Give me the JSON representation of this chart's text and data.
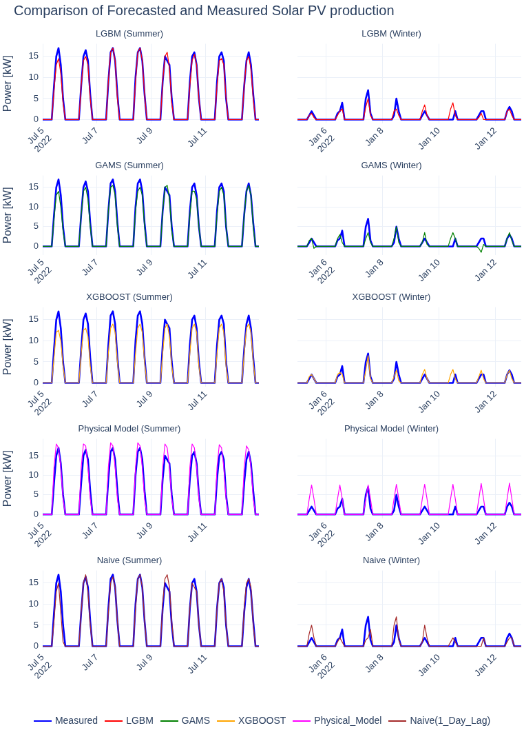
{
  "chart_data": [
    {
      "type": "line",
      "title": "LGBM (Summer)",
      "annotations": [
        "Comparison of Forecasted and Measured Solar PV production"
      ],
      "ylabel": "Power [kW]",
      "grid": true,
      "legend": "bottom",
      "xlim": [
        "2022-07-05T00:00",
        "2022-07-12T23:00"
      ],
      "ylim": [
        -0.9,
        18
      ],
      "yticks": [
        0,
        5,
        10,
        15
      ],
      "xticks": [
        {
          "value": "2022-07-05",
          "label": "Jul 5\n2022"
        },
        {
          "value": "2022-07-07",
          "label": "Jul 7"
        },
        {
          "value": "2022-07-09",
          "label": "Jul 9"
        },
        {
          "value": "2022-07-11",
          "label": "Jul 11"
        }
      ],
      "x": [
        "2022-07-05T00:00",
        "2022-07-05T08:00",
        "2022-07-05T10:00",
        "2022-07-05T12:00",
        "2022-07-05T14:00",
        "2022-07-05T16:00",
        "2022-07-05T18:00",
        "2022-07-05T20:00",
        "2022-07-06T08:00",
        "2022-07-06T10:00",
        "2022-07-06T12:00",
        "2022-07-06T14:00",
        "2022-07-06T16:00",
        "2022-07-06T18:00",
        "2022-07-06T20:00",
        "2022-07-07T08:00",
        "2022-07-07T10:00",
        "2022-07-07T12:00",
        "2022-07-07T14:00",
        "2022-07-07T16:00",
        "2022-07-07T18:00",
        "2022-07-07T20:00",
        "2022-07-08T08:00",
        "2022-07-08T10:00",
        "2022-07-08T12:00",
        "2022-07-08T14:00",
        "2022-07-08T16:00",
        "2022-07-08T18:00",
        "2022-07-08T20:00",
        "2022-07-09T08:00",
        "2022-07-09T10:00",
        "2022-07-09T12:00",
        "2022-07-09T14:00",
        "2022-07-09T16:00",
        "2022-07-09T18:00",
        "2022-07-09T20:00",
        "2022-07-10T08:00",
        "2022-07-10T10:00",
        "2022-07-10T12:00",
        "2022-07-10T14:00",
        "2022-07-10T16:00",
        "2022-07-10T18:00",
        "2022-07-10T20:00",
        "2022-07-11T08:00",
        "2022-07-11T10:00",
        "2022-07-11T12:00",
        "2022-07-11T14:00",
        "2022-07-11T16:00",
        "2022-07-11T18:00",
        "2022-07-11T20:00",
        "2022-07-12T08:00",
        "2022-07-12T10:00",
        "2022-07-12T12:00",
        "2022-07-12T14:00",
        "2022-07-12T16:00",
        "2022-07-12T18:00",
        "2022-07-12T20:00",
        "2022-07-12T23:00"
      ],
      "series": [
        {
          "name": "Measured",
          "color": "#0000ff",
          "values": [
            0,
            0,
            8,
            15,
            17,
            13,
            5,
            0,
            0,
            8,
            15,
            16.5,
            14,
            6,
            0,
            0,
            9,
            16,
            17,
            14,
            6,
            0,
            0,
            10,
            16,
            17,
            14,
            6,
            0,
            0,
            9,
            15,
            14,
            13,
            5,
            0,
            0,
            9,
            15,
            16,
            13,
            5,
            0,
            0,
            9,
            15,
            16,
            14,
            5,
            0,
            0,
            8,
            14,
            16,
            13,
            6,
            0,
            0
          ]
        },
        {
          "name": "LGBM",
          "color": "#ff0000",
          "values": [
            0,
            0,
            7,
            13,
            14.5,
            11,
            4,
            0,
            0,
            8,
            14,
            15,
            13,
            5,
            0,
            0,
            9,
            16,
            17,
            14,
            5,
            0,
            0,
            9,
            16,
            17,
            14,
            6,
            0,
            0,
            9,
            15,
            16,
            12,
            4,
            0,
            0,
            8,
            14,
            15.5,
            13,
            5,
            0,
            0,
            8,
            14,
            14.5,
            13,
            5,
            0,
            0,
            8,
            14,
            15,
            12,
            5,
            0,
            0
          ]
        }
      ]
    },
    {
      "type": "line",
      "title": "LGBM (Winter)",
      "grid": true,
      "legend": "bottom",
      "tick_labels": "x",
      "xlim": [
        "2022-01-05T00:00",
        "2022-01-12T22:00"
      ],
      "ylim": [
        -0.9,
        18
      ],
      "yticks": [
        0,
        5,
        10,
        15
      ],
      "xticks": [
        {
          "value": "2022-01-06",
          "label": "Jan 6\n2022"
        },
        {
          "value": "2022-01-08",
          "label": "Jan 8"
        },
        {
          "value": "2022-01-10",
          "label": "Jan 10"
        },
        {
          "value": "2022-01-12",
          "label": "Jan 12"
        }
      ],
      "x": [
        "2022-01-05T00:00",
        "2022-01-05T08:00",
        "2022-01-05T10:00",
        "2022-01-05T12:00",
        "2022-01-05T14:00",
        "2022-01-05T16:00",
        "2022-01-06T08:00",
        "2022-01-06T10:00",
        "2022-01-06T12:00",
        "2022-01-06T14:00",
        "2022-01-06T16:00",
        "2022-01-07T08:00",
        "2022-01-07T10:00",
        "2022-01-07T12:00",
        "2022-01-07T14:00",
        "2022-01-07T16:00",
        "2022-01-08T08:00",
        "2022-01-08T10:00",
        "2022-01-08T12:00",
        "2022-01-08T14:00",
        "2022-01-08T16:00",
        "2022-01-09T08:00",
        "2022-01-09T10:00",
        "2022-01-09T12:00",
        "2022-01-09T14:00",
        "2022-01-09T16:00",
        "2022-01-10T08:00",
        "2022-01-10T10:00",
        "2022-01-10T12:00",
        "2022-01-10T14:00",
        "2022-01-10T16:00",
        "2022-01-11T08:00",
        "2022-01-11T10:00",
        "2022-01-11T12:00",
        "2022-01-11T14:00",
        "2022-01-11T16:00",
        "2022-01-12T08:00",
        "2022-01-12T10:00",
        "2022-01-12T12:00",
        "2022-01-12T14:00",
        "2022-01-12T16:00",
        "2022-01-12T22:00"
      ],
      "series": [
        {
          "name": "Measured",
          "color": "#0000ff",
          "values": [
            0,
            0,
            1,
            2,
            1,
            0,
            0,
            1.5,
            2,
            4,
            0,
            0,
            5,
            7,
            1.5,
            0,
            0,
            1,
            5,
            2,
            0,
            0,
            1,
            2,
            1,
            0,
            0,
            0,
            0,
            2,
            0,
            0,
            1,
            2,
            2,
            0,
            0,
            2,
            3,
            2,
            0,
            0
          ]
        },
        {
          "name": "LGBM",
          "color": "#ff0000",
          "values": [
            0,
            0,
            1,
            1.5,
            0.5,
            0,
            0,
            1,
            2,
            2.5,
            0,
            0,
            3,
            5,
            1,
            0,
            0,
            2,
            2.5,
            1,
            0,
            0,
            2,
            3.5,
            1,
            0,
            0,
            2.5,
            4,
            1,
            0,
            0,
            0.5,
            1.5,
            0,
            0,
            0,
            2,
            2.5,
            1,
            0,
            0
          ]
        }
      ]
    },
    {
      "type": "line",
      "title": "GAMS (Summer)",
      "ylabel": "Power [kW]",
      "grid": true,
      "legend": "bottom",
      "xlim": [
        "2022-07-05T00:00",
        "2022-07-12T23:00"
      ],
      "ylim": [
        -2.2,
        18
      ],
      "yticks": [
        0,
        5,
        10,
        15
      ],
      "xticks": [
        {
          "value": "2022-07-05",
          "label": "Jul 5\n2022"
        },
        {
          "value": "2022-07-07",
          "label": "Jul 7"
        },
        {
          "value": "2022-07-09",
          "label": "Jul 9"
        },
        {
          "value": "2022-07-11",
          "label": "Jul 11"
        }
      ],
      "x": [
        "2022-07-05T00:00",
        "2022-07-05T08:00",
        "2022-07-05T10:00",
        "2022-07-05T12:00",
        "2022-07-05T14:00",
        "2022-07-05T16:00",
        "2022-07-05T18:00",
        "2022-07-05T20:00",
        "2022-07-06T08:00",
        "2022-07-06T10:00",
        "2022-07-06T12:00",
        "2022-07-06T14:00",
        "2022-07-06T16:00",
        "2022-07-06T18:00",
        "2022-07-06T20:00",
        "2022-07-07T08:00",
        "2022-07-07T10:00",
        "2022-07-07T12:00",
        "2022-07-07T14:00",
        "2022-07-07T16:00",
        "2022-07-07T18:00",
        "2022-07-07T20:00",
        "2022-07-08T08:00",
        "2022-07-08T10:00",
        "2022-07-08T12:00",
        "2022-07-08T14:00",
        "2022-07-08T16:00",
        "2022-07-08T18:00",
        "2022-07-08T20:00",
        "2022-07-09T08:00",
        "2022-07-09T10:00",
        "2022-07-09T12:00",
        "2022-07-09T14:00",
        "2022-07-09T16:00",
        "2022-07-09T18:00",
        "2022-07-09T20:00",
        "2022-07-10T08:00",
        "2022-07-10T10:00",
        "2022-07-10T12:00",
        "2022-07-10T14:00",
        "2022-07-10T16:00",
        "2022-07-10T18:00",
        "2022-07-10T20:00",
        "2022-07-11T08:00",
        "2022-07-11T10:00",
        "2022-07-11T12:00",
        "2022-07-11T14:00",
        "2022-07-11T16:00",
        "2022-07-11T18:00",
        "2022-07-11T20:00",
        "2022-07-12T08:00",
        "2022-07-12T10:00",
        "2022-07-12T12:00",
        "2022-07-12T14:00",
        "2022-07-12T16:00",
        "2022-07-12T18:00",
        "2022-07-12T20:00",
        "2022-07-12T23:00"
      ],
      "series": [
        {
          "name": "Measured",
          "color": "#0000ff",
          "values": [
            0,
            0,
            8,
            15,
            17,
            13,
            5,
            0,
            0,
            8,
            15,
            16.5,
            14,
            6,
            0,
            0,
            9,
            16,
            17,
            14,
            6,
            0,
            0,
            10,
            16,
            17,
            14,
            6,
            0,
            0,
            9,
            15,
            14,
            13,
            5,
            0,
            0,
            9,
            15,
            16,
            13,
            5,
            0,
            0,
            9,
            15,
            16,
            14,
            5,
            0,
            0,
            8,
            14,
            16,
            13,
            6,
            0,
            0
          ]
        },
        {
          "name": "GAMS",
          "color": "#008000",
          "values": [
            0,
            0,
            7,
            13,
            14,
            10,
            4,
            0,
            0,
            8,
            14,
            15,
            12,
            5,
            0,
            0,
            9,
            15,
            15.5,
            13,
            5,
            0,
            0,
            9,
            14,
            15,
            13,
            5,
            0,
            0,
            9,
            15,
            15.5,
            12,
            4,
            0,
            0,
            8,
            14,
            14,
            12,
            5,
            0,
            0,
            8,
            14,
            15,
            13,
            5,
            0,
            0,
            8,
            14,
            15.5,
            13,
            5,
            0,
            0
          ]
        }
      ]
    },
    {
      "type": "line",
      "title": "GAMS (Winter)",
      "grid": true,
      "legend": "bottom",
      "tick_labels": "x",
      "xlim": [
        "2022-01-05T00:00",
        "2022-01-12T22:00"
      ],
      "ylim": [
        -2.2,
        18
      ],
      "yticks": [
        0,
        5,
        10,
        15
      ],
      "xticks": [
        {
          "value": "2022-01-06",
          "label": "Jan 6\n2022"
        },
        {
          "value": "2022-01-08",
          "label": "Jan 8"
        },
        {
          "value": "2022-01-10",
          "label": "Jan 10"
        },
        {
          "value": "2022-01-12",
          "label": "Jan 12"
        }
      ],
      "x": [
        "2022-01-05T00:00",
        "2022-01-05T08:00",
        "2022-01-05T10:00",
        "2022-01-05T12:00",
        "2022-01-05T14:00",
        "2022-01-05T16:00",
        "2022-01-06T08:00",
        "2022-01-06T10:00",
        "2022-01-06T12:00",
        "2022-01-06T14:00",
        "2022-01-06T16:00",
        "2022-01-07T08:00",
        "2022-01-07T10:00",
        "2022-01-07T12:00",
        "2022-01-07T14:00",
        "2022-01-07T16:00",
        "2022-01-08T08:00",
        "2022-01-08T10:00",
        "2022-01-08T12:00",
        "2022-01-08T14:00",
        "2022-01-08T16:00",
        "2022-01-09T08:00",
        "2022-01-09T10:00",
        "2022-01-09T12:00",
        "2022-01-09T14:00",
        "2022-01-09T16:00",
        "2022-01-10T08:00",
        "2022-01-10T10:00",
        "2022-01-10T12:00",
        "2022-01-10T14:00",
        "2022-01-10T16:00",
        "2022-01-11T08:00",
        "2022-01-11T10:00",
        "2022-01-11T12:00",
        "2022-01-11T14:00",
        "2022-01-11T16:00",
        "2022-01-12T08:00",
        "2022-01-12T10:00",
        "2022-01-12T12:00",
        "2022-01-12T14:00",
        "2022-01-12T16:00",
        "2022-01-12T22:00"
      ],
      "series": [
        {
          "name": "Measured",
          "color": "#0000ff",
          "values": [
            0,
            0,
            1,
            2,
            1,
            0,
            0,
            1.5,
            2,
            4,
            0,
            0,
            5,
            7,
            1.5,
            0,
            0,
            1,
            5,
            2,
            0,
            0,
            1,
            2,
            1,
            0,
            0,
            0,
            0,
            2,
            0,
            0,
            1,
            2,
            2,
            0,
            0,
            2,
            3,
            2,
            0,
            0
          ]
        },
        {
          "name": "GAMS",
          "color": "#008000",
          "values": [
            0,
            0,
            1.5,
            2,
            -0.5,
            0,
            0,
            2,
            3,
            1,
            0,
            0,
            2,
            3.5,
            1,
            0,
            0,
            2,
            5,
            1,
            0,
            0,
            1,
            3.5,
            0.5,
            0,
            0,
            2,
            3.5,
            2,
            0,
            0,
            -0.5,
            -1.5,
            0.5,
            0,
            0,
            2,
            3.5,
            1.5,
            0,
            0
          ]
        }
      ]
    },
    {
      "type": "line",
      "title": "XGBOOST (Summer)",
      "ylabel": "Power [kW]",
      "grid": true,
      "legend": "bottom",
      "xlim": [
        "2022-07-05T00:00",
        "2022-07-12T23:00"
      ],
      "ylim": [
        -0.9,
        18
      ],
      "yticks": [
        0,
        5,
        10,
        15
      ],
      "xticks": [
        {
          "value": "2022-07-05",
          "label": "Jul 5\n2022"
        },
        {
          "value": "2022-07-07",
          "label": "Jul 7"
        },
        {
          "value": "2022-07-09",
          "label": "Jul 9"
        },
        {
          "value": "2022-07-11",
          "label": "Jul 11"
        }
      ],
      "x": [
        "2022-07-05T00:00",
        "2022-07-05T08:00",
        "2022-07-05T10:00",
        "2022-07-05T12:00",
        "2022-07-05T14:00",
        "2022-07-05T16:00",
        "2022-07-05T18:00",
        "2022-07-05T20:00",
        "2022-07-06T08:00",
        "2022-07-06T10:00",
        "2022-07-06T12:00",
        "2022-07-06T14:00",
        "2022-07-06T16:00",
        "2022-07-06T18:00",
        "2022-07-06T20:00",
        "2022-07-07T08:00",
        "2022-07-07T10:00",
        "2022-07-07T12:00",
        "2022-07-07T14:00",
        "2022-07-07T16:00",
        "2022-07-07T18:00",
        "2022-07-07T20:00",
        "2022-07-08T08:00",
        "2022-07-08T10:00",
        "2022-07-08T12:00",
        "2022-07-08T14:00",
        "2022-07-08T16:00",
        "2022-07-08T18:00",
        "2022-07-08T20:00",
        "2022-07-09T08:00",
        "2022-07-09T10:00",
        "2022-07-09T12:00",
        "2022-07-09T14:00",
        "2022-07-09T16:00",
        "2022-07-09T18:00",
        "2022-07-09T20:00",
        "2022-07-10T08:00",
        "2022-07-10T10:00",
        "2022-07-10T12:00",
        "2022-07-10T14:00",
        "2022-07-10T16:00",
        "2022-07-10T18:00",
        "2022-07-10T20:00",
        "2022-07-11T08:00",
        "2022-07-11T10:00",
        "2022-07-11T12:00",
        "2022-07-11T14:00",
        "2022-07-11T16:00",
        "2022-07-11T18:00",
        "2022-07-11T20:00",
        "2022-07-12T08:00",
        "2022-07-12T10:00",
        "2022-07-12T12:00",
        "2022-07-12T14:00",
        "2022-07-12T16:00",
        "2022-07-12T18:00",
        "2022-07-12T20:00",
        "2022-07-12T23:00"
      ],
      "series": [
        {
          "name": "Measured",
          "color": "#0000ff",
          "values": [
            0,
            0,
            8,
            15,
            17,
            13,
            5,
            0,
            0,
            8,
            15,
            16.5,
            14,
            6,
            0,
            0,
            9,
            16,
            17,
            14,
            6,
            0,
            0,
            10,
            16,
            17,
            14,
            6,
            0,
            0,
            9,
            15,
            14,
            13,
            5,
            0,
            0,
            9,
            15,
            16,
            13,
            5,
            0,
            0,
            9,
            15,
            16,
            14,
            5,
            0,
            0,
            8,
            14,
            16,
            13,
            6,
            0,
            0
          ]
        },
        {
          "name": "XGBOOST",
          "color": "#ffa500",
          "values": [
            0,
            0,
            6,
            12,
            12.5,
            10,
            4,
            0,
            0,
            7,
            12.5,
            13,
            11,
            4,
            0,
            0,
            7,
            13,
            14,
            12,
            5,
            0,
            0,
            7,
            13,
            14,
            12,
            5,
            0,
            0,
            7,
            13,
            14,
            11,
            4,
            0,
            0,
            7,
            13,
            14,
            12,
            4,
            0,
            0,
            7,
            13,
            14,
            12,
            4,
            0,
            0,
            7,
            13,
            14,
            12,
            5,
            0,
            0
          ]
        }
      ]
    },
    {
      "type": "line",
      "title": "XGBOOST (Winter)",
      "grid": true,
      "legend": "bottom",
      "tick_labels": "x",
      "xlim": [
        "2022-01-05T00:00",
        "2022-01-12T22:00"
      ],
      "ylim": [
        -0.9,
        18
      ],
      "yticks": [
        0,
        5,
        10,
        15
      ],
      "xticks": [
        {
          "value": "2022-01-06",
          "label": "Jan 6\n2022"
        },
        {
          "value": "2022-01-08",
          "label": "Jan 8"
        },
        {
          "value": "2022-01-10",
          "label": "Jan 10"
        },
        {
          "value": "2022-01-12",
          "label": "Jan 12"
        }
      ],
      "x": [
        "2022-01-05T00:00",
        "2022-01-05T08:00",
        "2022-01-05T10:00",
        "2022-01-05T12:00",
        "2022-01-05T14:00",
        "2022-01-05T16:00",
        "2022-01-06T08:00",
        "2022-01-06T10:00",
        "2022-01-06T12:00",
        "2022-01-06T14:00",
        "2022-01-06T16:00",
        "2022-01-07T08:00",
        "2022-01-07T10:00",
        "2022-01-07T12:00",
        "2022-01-07T14:00",
        "2022-01-07T16:00",
        "2022-01-08T08:00",
        "2022-01-08T10:00",
        "2022-01-08T12:00",
        "2022-01-08T14:00",
        "2022-01-08T16:00",
        "2022-01-09T08:00",
        "2022-01-09T10:00",
        "2022-01-09T12:00",
        "2022-01-09T14:00",
        "2022-01-09T16:00",
        "2022-01-10T08:00",
        "2022-01-10T10:00",
        "2022-01-10T12:00",
        "2022-01-10T14:00",
        "2022-01-10T16:00",
        "2022-01-11T08:00",
        "2022-01-11T10:00",
        "2022-01-11T12:00",
        "2022-01-11T14:00",
        "2022-01-11T16:00",
        "2022-01-12T08:00",
        "2022-01-12T10:00",
        "2022-01-12T12:00",
        "2022-01-12T14:00",
        "2022-01-12T16:00",
        "2022-01-12T22:00"
      ],
      "series": [
        {
          "name": "Measured",
          "color": "#0000ff",
          "values": [
            0,
            0,
            1,
            2,
            1,
            0,
            0,
            1.5,
            2,
            4,
            0,
            0,
            5,
            7,
            1.5,
            0,
            0,
            1,
            5,
            2,
            0,
            0,
            1,
            2,
            1,
            0,
            0,
            0,
            0,
            2,
            0,
            0,
            1,
            2,
            2,
            0,
            0,
            2,
            3,
            2,
            0,
            0
          ]
        },
        {
          "name": "XGBOOST",
          "color": "#ffa500",
          "values": [
            0,
            0,
            1.5,
            2,
            1,
            0,
            0,
            2,
            2.5,
            2,
            0,
            0,
            3,
            6.5,
            1,
            0,
            0,
            1.5,
            3,
            0.5,
            0,
            0,
            2,
            3.2,
            1,
            0,
            0,
            2,
            3.2,
            1,
            0,
            0,
            1.5,
            3,
            1,
            0,
            0,
            2,
            3,
            1,
            0,
            0
          ]
        }
      ]
    },
    {
      "type": "line",
      "title": "Physical Model (Summer)",
      "ylabel": "Power [kW]",
      "grid": true,
      "legend": "bottom",
      "xlim": [
        "2022-07-05T00:00",
        "2022-07-12T23:00"
      ],
      "ylim": [
        -1,
        19.3
      ],
      "yticks": [
        0,
        5,
        10,
        15
      ],
      "xticks": [
        {
          "value": "2022-07-05",
          "label": "Jul 5\n2022"
        },
        {
          "value": "2022-07-07",
          "label": "Jul 7"
        },
        {
          "value": "2022-07-09",
          "label": "Jul 9"
        },
        {
          "value": "2022-07-11",
          "label": "Jul 11"
        }
      ],
      "x": [
        "2022-07-05T00:00",
        "2022-07-05T08:00",
        "2022-07-05T10:00",
        "2022-07-05T12:00",
        "2022-07-05T14:00",
        "2022-07-05T16:00",
        "2022-07-05T18:00",
        "2022-07-05T20:00",
        "2022-07-06T08:00",
        "2022-07-06T10:00",
        "2022-07-06T12:00",
        "2022-07-06T14:00",
        "2022-07-06T16:00",
        "2022-07-06T18:00",
        "2022-07-06T20:00",
        "2022-07-07T08:00",
        "2022-07-07T10:00",
        "2022-07-07T12:00",
        "2022-07-07T14:00",
        "2022-07-07T16:00",
        "2022-07-07T18:00",
        "2022-07-07T20:00",
        "2022-07-08T08:00",
        "2022-07-08T10:00",
        "2022-07-08T12:00",
        "2022-07-08T14:00",
        "2022-07-08T16:00",
        "2022-07-08T18:00",
        "2022-07-08T20:00",
        "2022-07-09T08:00",
        "2022-07-09T10:00",
        "2022-07-09T12:00",
        "2022-07-09T14:00",
        "2022-07-09T16:00",
        "2022-07-09T18:00",
        "2022-07-09T20:00",
        "2022-07-10T08:00",
        "2022-07-10T10:00",
        "2022-07-10T12:00",
        "2022-07-10T14:00",
        "2022-07-10T16:00",
        "2022-07-10T18:00",
        "2022-07-10T20:00",
        "2022-07-11T08:00",
        "2022-07-11T10:00",
        "2022-07-11T12:00",
        "2022-07-11T14:00",
        "2022-07-11T16:00",
        "2022-07-11T18:00",
        "2022-07-11T20:00",
        "2022-07-12T08:00",
        "2022-07-12T10:00",
        "2022-07-12T12:00",
        "2022-07-12T14:00",
        "2022-07-12T16:00",
        "2022-07-12T18:00",
        "2022-07-12T20:00",
        "2022-07-12T23:00"
      ],
      "series": [
        {
          "name": "Measured",
          "color": "#0000ff",
          "values": [
            0,
            0,
            8,
            15,
            17,
            13,
            5,
            0,
            0,
            8,
            15,
            16.5,
            14,
            6,
            0,
            0,
            9,
            16,
            17,
            14,
            6,
            0,
            0,
            10,
            16,
            17,
            14,
            6,
            0,
            0,
            9,
            15,
            14,
            13,
            5,
            0,
            0,
            9,
            15,
            16,
            13,
            5,
            0,
            0,
            9,
            15,
            16,
            14,
            5,
            0,
            0,
            8,
            14,
            16,
            13,
            6,
            0,
            0
          ]
        },
        {
          "name": "Physical_Model",
          "color": "#ff00ff",
          "values": [
            0,
            0,
            12,
            18,
            17,
            12,
            4,
            0,
            0,
            12,
            18,
            17.5,
            12,
            4,
            0,
            0,
            12,
            18.3,
            17.5,
            12,
            4,
            0,
            0,
            12,
            18.3,
            17.5,
            12,
            4,
            0,
            0,
            12,
            18,
            17,
            12,
            4,
            0,
            0,
            12,
            18,
            17,
            12,
            4,
            0,
            0,
            12,
            17.8,
            17,
            12,
            4,
            0,
            0,
            12,
            17.5,
            16.5,
            12,
            4,
            0,
            0
          ]
        }
      ]
    },
    {
      "type": "line",
      "title": "Physical Model (Winter)",
      "grid": true,
      "legend": "bottom",
      "tick_labels": "x",
      "xlim": [
        "2022-01-05T00:00",
        "2022-01-12T22:00"
      ],
      "ylim": [
        -1,
        19.3
      ],
      "yticks": [
        0,
        5,
        10,
        15
      ],
      "xticks": [
        {
          "value": "2022-01-06",
          "label": "Jan 6\n2022"
        },
        {
          "value": "2022-01-08",
          "label": "Jan 8"
        },
        {
          "value": "2022-01-10",
          "label": "Jan 10"
        },
        {
          "value": "2022-01-12",
          "label": "Jan 12"
        }
      ],
      "x": [
        "2022-01-05T00:00",
        "2022-01-05T08:00",
        "2022-01-05T10:00",
        "2022-01-05T12:00",
        "2022-01-05T14:00",
        "2022-01-05T16:00",
        "2022-01-06T08:00",
        "2022-01-06T10:00",
        "2022-01-06T12:00",
        "2022-01-06T14:00",
        "2022-01-06T16:00",
        "2022-01-07T08:00",
        "2022-01-07T10:00",
        "2022-01-07T12:00",
        "2022-01-07T14:00",
        "2022-01-07T16:00",
        "2022-01-08T08:00",
        "2022-01-08T10:00",
        "2022-01-08T12:00",
        "2022-01-08T14:00",
        "2022-01-08T16:00",
        "2022-01-09T08:00",
        "2022-01-09T10:00",
        "2022-01-09T12:00",
        "2022-01-09T14:00",
        "2022-01-09T16:00",
        "2022-01-10T08:00",
        "2022-01-10T10:00",
        "2022-01-10T12:00",
        "2022-01-10T14:00",
        "2022-01-10T16:00",
        "2022-01-11T08:00",
        "2022-01-11T10:00",
        "2022-01-11T12:00",
        "2022-01-11T14:00",
        "2022-01-11T16:00",
        "2022-01-12T08:00",
        "2022-01-12T10:00",
        "2022-01-12T12:00",
        "2022-01-12T14:00",
        "2022-01-12T16:00",
        "2022-01-12T22:00"
      ],
      "series": [
        {
          "name": "Measured",
          "color": "#0000ff",
          "values": [
            0,
            0,
            1,
            2,
            1,
            0,
            0,
            1.5,
            2,
            4,
            0,
            0,
            5,
            7,
            1.5,
            0,
            0,
            1,
            5,
            2,
            0,
            0,
            1,
            2,
            1,
            0,
            0,
            0,
            0,
            2,
            0,
            0,
            1,
            2,
            2,
            0,
            0,
            2,
            3,
            2,
            0,
            0
          ]
        },
        {
          "name": "Physical_Model",
          "color": "#ff00ff",
          "values": [
            0,
            0,
            4,
            7.5,
            4,
            0,
            0,
            4,
            7.5,
            4,
            0,
            0,
            4,
            7.5,
            4,
            0,
            0,
            4,
            7.7,
            4,
            0,
            0,
            4,
            7.7,
            4,
            0,
            0,
            4,
            7.7,
            4,
            0,
            0,
            4,
            7.9,
            4,
            0,
            0,
            4,
            8,
            4,
            0,
            0
          ]
        }
      ]
    },
    {
      "type": "line",
      "title": "Naive (Summer)",
      "grid": true,
      "legend": "bottom",
      "xlim": [
        "2022-07-05T00:00",
        "2022-07-12T23:00"
      ],
      "ylim": [
        -0.9,
        18
      ],
      "yticks": [
        0,
        5,
        10,
        15
      ],
      "xticks": [
        {
          "value": "2022-07-05",
          "label": "Jul 5\n2022"
        },
        {
          "value": "2022-07-07",
          "label": "Jul 7"
        },
        {
          "value": "2022-07-09",
          "label": "Jul 9"
        },
        {
          "value": "2022-07-11",
          "label": "Jul 11"
        }
      ],
      "x": [
        "2022-07-05T00:00",
        "2022-07-05T08:00",
        "2022-07-05T10:00",
        "2022-07-05T12:00",
        "2022-07-05T14:00",
        "2022-07-05T16:00",
        "2022-07-05T18:00",
        "2022-07-05T20:00",
        "2022-07-06T08:00",
        "2022-07-06T10:00",
        "2022-07-06T12:00",
        "2022-07-06T14:00",
        "2022-07-06T16:00",
        "2022-07-06T18:00",
        "2022-07-06T20:00",
        "2022-07-07T08:00",
        "2022-07-07T10:00",
        "2022-07-07T12:00",
        "2022-07-07T14:00",
        "2022-07-07T16:00",
        "2022-07-07T18:00",
        "2022-07-07T20:00",
        "2022-07-08T08:00",
        "2022-07-08T10:00",
        "2022-07-08T12:00",
        "2022-07-08T14:00",
        "2022-07-08T16:00",
        "2022-07-08T18:00",
        "2022-07-08T20:00",
        "2022-07-09T08:00",
        "2022-07-09T10:00",
        "2022-07-09T12:00",
        "2022-07-09T14:00",
        "2022-07-09T16:00",
        "2022-07-09T18:00",
        "2022-07-09T20:00",
        "2022-07-10T08:00",
        "2022-07-10T10:00",
        "2022-07-10T12:00",
        "2022-07-10T14:00",
        "2022-07-10T16:00",
        "2022-07-10T18:00",
        "2022-07-10T20:00",
        "2022-07-11T08:00",
        "2022-07-11T10:00",
        "2022-07-11T12:00",
        "2022-07-11T14:00",
        "2022-07-11T16:00",
        "2022-07-11T18:00",
        "2022-07-11T20:00",
        "2022-07-12T08:00",
        "2022-07-12T10:00",
        "2022-07-12T12:00",
        "2022-07-12T14:00",
        "2022-07-12T16:00",
        "2022-07-12T18:00",
        "2022-07-12T20:00",
        "2022-07-12T23:00"
      ],
      "series": [
        {
          "name": "Measured",
          "color": "#0000ff",
          "values": [
            0,
            0,
            8,
            15,
            17,
            13,
            5,
            0,
            0,
            8,
            15,
            16.5,
            14,
            6,
            0,
            0,
            9,
            16,
            17,
            14,
            6,
            0,
            0,
            10,
            16,
            17,
            14,
            6,
            0,
            0,
            9,
            15,
            14,
            13,
            5,
            0,
            0,
            9,
            15,
            16,
            13,
            5,
            0,
            0,
            9,
            15,
            16,
            14,
            5,
            0,
            0,
            8,
            14,
            16,
            13,
            6,
            0,
            0
          ]
        },
        {
          "name": "Naive(1_Day_Lag)",
          "color": "#a52a2a",
          "values": [
            0,
            0,
            6,
            13,
            15,
            8,
            1,
            0,
            0,
            8,
            15,
            17,
            13,
            5,
            0,
            0,
            8,
            15,
            16.5,
            14,
            6,
            0,
            0,
            9,
            16,
            17,
            14,
            6,
            0,
            0,
            10,
            16,
            17,
            14,
            6,
            0,
            0,
            9,
            15,
            14,
            13,
            5,
            0,
            0,
            9,
            15,
            16,
            13,
            5,
            0,
            0,
            9,
            15,
            16,
            14,
            5,
            0,
            0
          ]
        }
      ]
    },
    {
      "type": "line",
      "title": "Naive (Winter)",
      "grid": true,
      "legend": "bottom",
      "tick_labels": "x",
      "xlim": [
        "2022-01-05T00:00",
        "2022-01-12T22:00"
      ],
      "ylim": [
        -0.9,
        18
      ],
      "yticks": [
        0,
        5,
        10,
        15
      ],
      "xticks": [
        {
          "value": "2022-01-06",
          "label": "Jan 6\n2022"
        },
        {
          "value": "2022-01-08",
          "label": "Jan 8"
        },
        {
          "value": "2022-01-10",
          "label": "Jan 10"
        },
        {
          "value": "2022-01-12",
          "label": "Jan 12"
        }
      ],
      "x": [
        "2022-01-05T00:00",
        "2022-01-05T08:00",
        "2022-01-05T10:00",
        "2022-01-05T12:00",
        "2022-01-05T14:00",
        "2022-01-05T16:00",
        "2022-01-06T08:00",
        "2022-01-06T10:00",
        "2022-01-06T12:00",
        "2022-01-06T14:00",
        "2022-01-06T16:00",
        "2022-01-07T08:00",
        "2022-01-07T10:00",
        "2022-01-07T12:00",
        "2022-01-07T14:00",
        "2022-01-07T16:00",
        "2022-01-08T08:00",
        "2022-01-08T10:00",
        "2022-01-08T12:00",
        "2022-01-08T14:00",
        "2022-01-08T16:00",
        "2022-01-09T08:00",
        "2022-01-09T10:00",
        "2022-01-09T12:00",
        "2022-01-09T14:00",
        "2022-01-09T16:00",
        "2022-01-10T08:00",
        "2022-01-10T10:00",
        "2022-01-10T12:00",
        "2022-01-10T14:00",
        "2022-01-10T16:00",
        "2022-01-11T08:00",
        "2022-01-11T10:00",
        "2022-01-11T12:00",
        "2022-01-11T14:00",
        "2022-01-11T16:00",
        "2022-01-12T08:00",
        "2022-01-12T10:00",
        "2022-01-12T12:00",
        "2022-01-12T14:00",
        "2022-01-12T16:00",
        "2022-01-12T22:00"
      ],
      "series": [
        {
          "name": "Measured",
          "color": "#0000ff",
          "values": [
            0,
            0,
            1,
            2,
            1,
            0,
            0,
            1.5,
            2,
            4,
            0,
            0,
            5,
            7,
            1.5,
            0,
            0,
            1,
            5,
            2,
            0,
            0,
            1,
            2,
            1,
            0,
            0,
            0,
            0,
            2,
            0,
            0,
            1,
            2,
            2,
            0,
            0,
            2,
            3,
            2,
            0,
            0
          ]
        },
        {
          "name": "Naive(1_Day_Lag)",
          "color": "#a52a2a",
          "values": [
            0,
            0,
            3,
            5,
            2,
            0,
            0,
            1,
            2,
            1,
            0,
            0,
            1.5,
            2,
            4,
            0,
            0,
            5,
            7,
            1.5,
            0,
            0,
            1,
            5,
            2,
            0,
            0,
            1,
            2,
            1,
            0,
            0,
            0,
            0,
            2,
            0,
            0,
            1,
            2,
            2,
            0,
            0
          ]
        }
      ]
    }
  ]
}
